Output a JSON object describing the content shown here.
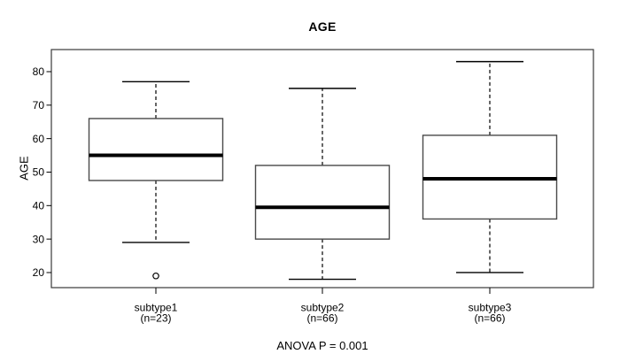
{
  "chart_data": {
    "type": "boxplot",
    "title": "AGE",
    "ylabel": "AGE",
    "annotation": "ANOVA P = 0.001",
    "ylim": [
      15.5,
      86.6
    ],
    "y_ticks": [
      20,
      30,
      40,
      50,
      60,
      70,
      80
    ],
    "grid": false,
    "legend": false,
    "categories": [
      "subtype1",
      "subtype2",
      "subtype3"
    ],
    "groups": [
      {
        "label": "subtype1",
        "count_label": "(n=23)",
        "n": 23,
        "whisker_low": 29,
        "q1": 47.5,
        "median": 55,
        "q3": 66,
        "whisker_high": 77,
        "outliers": [
          19
        ]
      },
      {
        "label": "subtype2",
        "count_label": "(n=66)",
        "n": 66,
        "whisker_low": 18,
        "q1": 30,
        "median": 39.5,
        "q3": 52,
        "whisker_high": 75,
        "outliers": []
      },
      {
        "label": "subtype3",
        "count_label": "(n=66)",
        "n": 66,
        "whisker_low": 20,
        "q1": 36,
        "median": 48,
        "q3": 61,
        "whisker_high": 83,
        "outliers": []
      }
    ],
    "colors": {
      "background": "#ffffff",
      "frame": "#3a3a3a",
      "box_border": "#4a4a4a",
      "box_fill": "#ffffff",
      "median": "#000000",
      "whisker": "#000000",
      "text": "#000000"
    }
  }
}
